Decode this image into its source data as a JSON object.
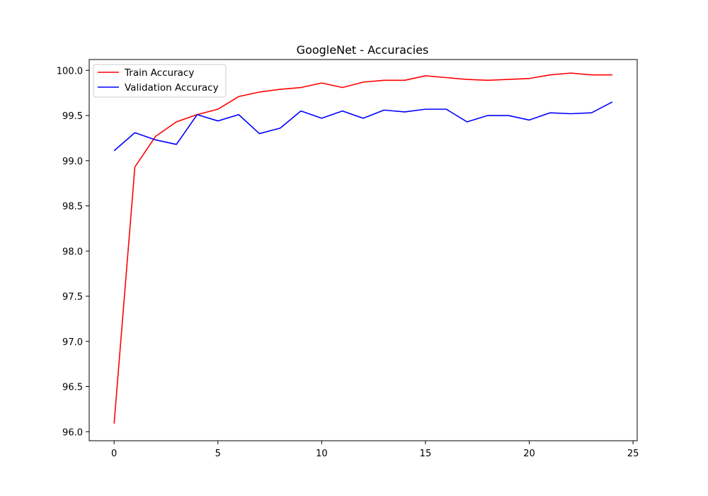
{
  "chart_data": {
    "type": "line",
    "title": "GoogleNet - Accuracies",
    "xlabel": "",
    "ylabel": "",
    "xlim": [
      -1.2,
      25.2
    ],
    "ylim": [
      95.9,
      100.12
    ],
    "xticks": [
      0,
      5,
      10,
      15,
      20,
      25
    ],
    "yticks": [
      96.0,
      96.5,
      97.0,
      97.5,
      98.0,
      98.5,
      99.0,
      99.5,
      100.0
    ],
    "ytick_labels": [
      "96.0",
      "96.5",
      "97.0",
      "97.5",
      "98.0",
      "98.5",
      "99.0",
      "99.5",
      "100.0"
    ],
    "grid": false,
    "legend_position": "top-left",
    "x": [
      0,
      1,
      2,
      3,
      4,
      5,
      6,
      7,
      8,
      9,
      10,
      11,
      12,
      13,
      14,
      15,
      16,
      17,
      18,
      19,
      20,
      21,
      22,
      23,
      24
    ],
    "series": [
      {
        "name": "Train Accuracy",
        "color": "#ff0000",
        "values": [
          96.09,
          98.93,
          99.27,
          99.43,
          99.51,
          99.57,
          99.71,
          99.76,
          99.79,
          99.81,
          99.86,
          99.81,
          99.87,
          99.89,
          99.89,
          99.94,
          99.92,
          99.9,
          99.89,
          99.9,
          99.91,
          99.95,
          99.97,
          99.95,
          99.95
        ]
      },
      {
        "name": "Validation Accuracy",
        "color": "#0000ff",
        "values": [
          99.11,
          99.31,
          99.23,
          99.18,
          99.51,
          99.44,
          99.51,
          99.3,
          99.36,
          99.55,
          99.47,
          99.55,
          99.47,
          99.56,
          99.54,
          99.57,
          99.57,
          99.43,
          99.5,
          99.5,
          99.45,
          99.53,
          99.52,
          99.53,
          99.65
        ]
      }
    ]
  }
}
